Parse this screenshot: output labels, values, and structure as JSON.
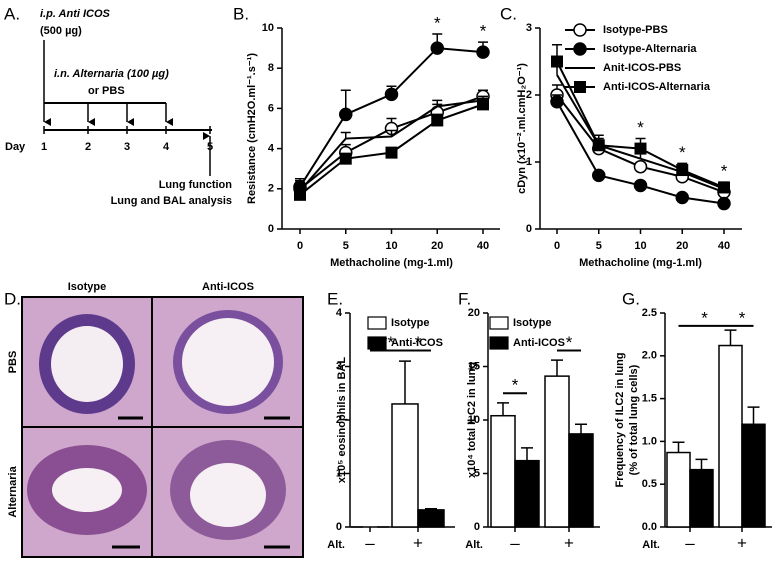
{
  "panel_a": {
    "label": "A.",
    "treatment": "i.p. Anti ICOS",
    "dose": "(500 µg)",
    "challenge": "i.n. Alternaria (100 µg)",
    "challenge_alt": "or PBS",
    "day_label": "Day",
    "days": [
      "1",
      "2",
      "3",
      "4",
      "5"
    ],
    "readout_1": "Lung function",
    "readout_2": "Lung and BAL analysis"
  },
  "panel_d": {
    "label": "D.",
    "columns": [
      "Isotype",
      "Anti-ICOS"
    ],
    "rows": [
      "PBS",
      "Alternaria"
    ]
  },
  "chart_data": [
    {
      "type": "line",
      "panel": "B.",
      "ylabel": "Resistance (cmH2O.ml⁻¹.s⁻¹)",
      "xlabel": "Methacholine (mg-1.ml)",
      "categories": [
        "0",
        "5",
        "10",
        "20",
        "40"
      ],
      "ylim": [
        0,
        10
      ],
      "yticks": [
        0,
        2,
        4,
        6,
        8,
        10
      ],
      "legend": false,
      "series": [
        {
          "name": "Isotype-PBS",
          "marker": "open-circle",
          "color": "#000000",
          "values": [
            2.0,
            3.8,
            5.0,
            5.8,
            6.6
          ],
          "errors": [
            0.5,
            0.4,
            0.5,
            0.4,
            0.3
          ]
        },
        {
          "name": "Isotype-Alternaria",
          "marker": "circle",
          "color": "#000000",
          "values": [
            2.1,
            5.7,
            6.7,
            9.0,
            8.8
          ],
          "errors": [
            0.3,
            1.2,
            0.4,
            0.7,
            0.5
          ]
        },
        {
          "name": "Anit-ICOS-PBS",
          "marker": "none",
          "color": "#000000",
          "values": [
            1.9,
            4.5,
            4.6,
            6.1,
            6.4
          ],
          "errors": [
            0.2,
            0.3,
            0.3,
            0.3,
            0.2
          ]
        },
        {
          "name": "Anti-ICOS-Alternaria",
          "marker": "square",
          "color": "#000000",
          "values": [
            1.7,
            3.5,
            3.8,
            5.4,
            6.2
          ],
          "errors": [
            0.2,
            0.2,
            0.2,
            0.3,
            0.3
          ]
        }
      ],
      "annotations": [
        {
          "category": "20",
          "text": "*"
        },
        {
          "category": "40",
          "text": "*"
        }
      ]
    },
    {
      "type": "line",
      "panel": "C.",
      "ylabel": "cDyn (x10⁻².ml.cmH₂O⁻¹)",
      "xlabel": "Methacholine (mg-1.ml)",
      "categories": [
        "0",
        "5",
        "10",
        "20",
        "40"
      ],
      "ylim": [
        0,
        3
      ],
      "yticks": [
        0,
        1,
        2,
        3
      ],
      "legend": true,
      "series": [
        {
          "name": "Isotype-PBS",
          "marker": "open-circle",
          "color": "#000000",
          "values": [
            2.0,
            1.2,
            0.93,
            0.78,
            0.55
          ],
          "errors": [
            0.15,
            0.08,
            0.06,
            0.05,
            0.04
          ]
        },
        {
          "name": "Isotype-Alternaria",
          "marker": "circle",
          "color": "#000000",
          "values": [
            1.9,
            0.8,
            0.65,
            0.47,
            0.38
          ],
          "errors": [
            0.1,
            0.05,
            0.04,
            0.04,
            0.03
          ]
        },
        {
          "name": "Anit-ICOS-PBS",
          "marker": "none",
          "color": "#000000",
          "values": [
            2.3,
            1.25,
            1.05,
            0.85,
            0.6
          ],
          "errors": [
            0.15,
            0.1,
            0.08,
            0.06,
            0.05
          ]
        },
        {
          "name": "Anti-ICOS-Alternaria",
          "marker": "square",
          "color": "#000000",
          "values": [
            2.5,
            1.25,
            1.2,
            0.88,
            0.62
          ],
          "errors": [
            0.25,
            0.15,
            0.15,
            0.1,
            0.08
          ]
        }
      ],
      "annotations": [
        {
          "category": "10",
          "text": "*"
        },
        {
          "category": "20",
          "text": "*"
        },
        {
          "category": "40",
          "text": "*"
        }
      ]
    },
    {
      "type": "bar",
      "panel": "E.",
      "ylabel": "x10⁵ eosinophils in BAL",
      "xlabel": "Alt.",
      "categories": [
        "–",
        "+"
      ],
      "ylim": [
        0,
        4
      ],
      "yticks": [
        0,
        1,
        2,
        3,
        4
      ],
      "legend": true,
      "series": [
        {
          "name": "Isotype",
          "color": "#ffffff",
          "values": [
            0,
            2.3
          ],
          "errors": [
            0,
            0.8
          ]
        },
        {
          "name": "Anti-ICOS",
          "color": "#000000",
          "values": [
            0,
            0.32
          ],
          "errors": [
            0,
            0.02
          ]
        }
      ],
      "brackets": [
        {
          "label": "**",
          "y": 3.3
        },
        {
          "label": "*",
          "y": 3.3
        }
      ]
    },
    {
      "type": "bar",
      "panel": "F.",
      "ylabel": "x10⁴ total ILC2 in lung",
      "xlabel": "Alt.",
      "categories": [
        "–",
        "+"
      ],
      "ylim": [
        0,
        20
      ],
      "yticks": [
        0,
        5,
        10,
        15,
        20
      ],
      "legend": true,
      "series": [
        {
          "name": "Isotype",
          "color": "#ffffff",
          "values": [
            10.4,
            14.1
          ],
          "errors": [
            1.2,
            1.5
          ]
        },
        {
          "name": "Anti-ICOS",
          "color": "#000000",
          "values": [
            6.2,
            8.7
          ],
          "errors": [
            1.2,
            0.9
          ]
        }
      ],
      "brackets": [
        {
          "label": "*",
          "y": 12.5
        },
        {
          "label": "*",
          "y": 16.5
        }
      ]
    },
    {
      "type": "bar",
      "panel": "G.",
      "ylabel": [
        "Frequency of ILC2 in lung",
        "(% of total lung cells)"
      ],
      "xlabel": "Alt.",
      "categories": [
        "–",
        "+"
      ],
      "ylim": [
        0,
        2.5
      ],
      "yticks": [
        {
          "value": 0,
          "label": "0.0"
        },
        0.5,
        {
          "value": 1,
          "label": "1.0"
        },
        1.5,
        {
          "value": 2,
          "label": "2.0"
        },
        2.5
      ],
      "legend": false,
      "series": [
        {
          "name": "Isotype",
          "color": "#ffffff",
          "values": [
            0.87,
            2.12
          ],
          "errors": [
            0.12,
            0.18
          ]
        },
        {
          "name": "Anti-ICOS",
          "color": "#000000",
          "values": [
            0.67,
            1.2
          ],
          "errors": [
            0.12,
            0.2
          ]
        }
      ],
      "brackets": [
        {
          "label": "*",
          "y": 2.35
        },
        {
          "label": "*",
          "y": 2.35
        }
      ]
    }
  ]
}
